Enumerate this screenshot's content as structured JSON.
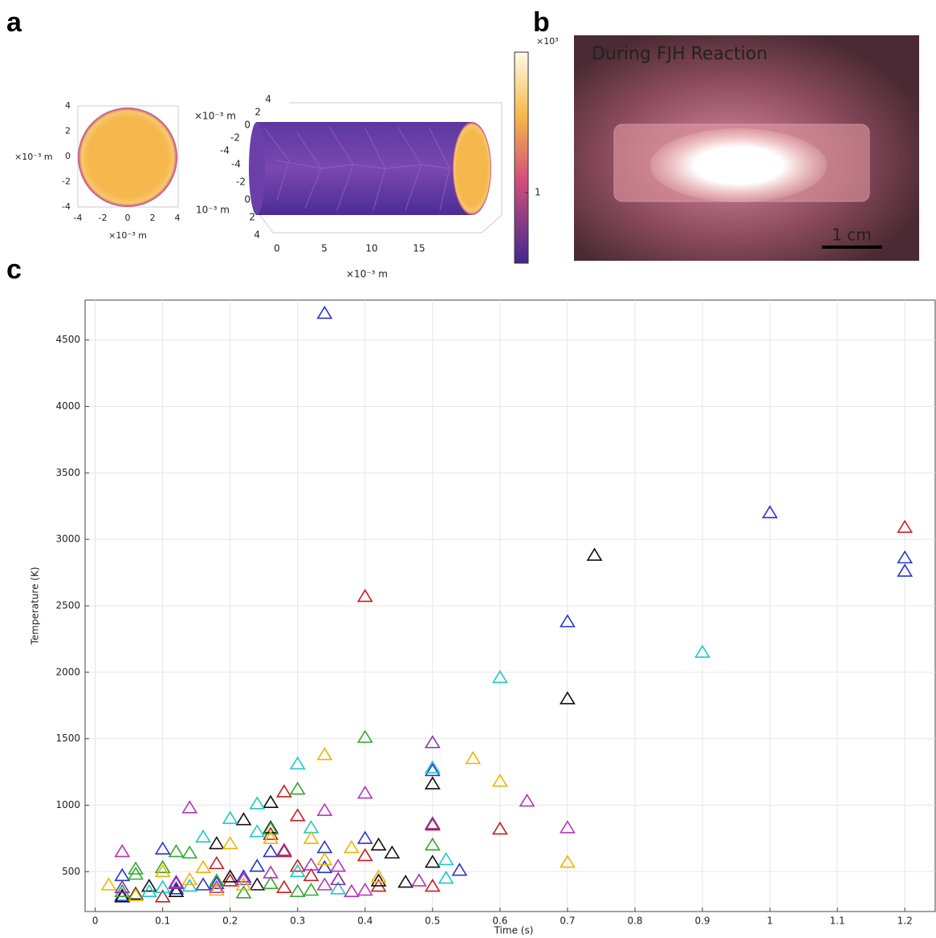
{
  "figure": {
    "panel_labels": [
      "a",
      "b",
      "c"
    ],
    "panel_a": {
      "cross_section": {
        "yticks": [
          "4",
          "2",
          "0",
          "-2",
          "-4"
        ],
        "xticks": [
          "-4",
          "-2",
          "0",
          "2",
          "4"
        ],
        "y_unit": "×10⁻³ m",
        "x_unit": "×10⁻³ m"
      },
      "cylinder": {
        "yticks": [
          "4",
          "2",
          "0",
          "-2",
          "-4"
        ],
        "zticks": [
          "-4",
          "-2",
          "0",
          "2",
          "4"
        ],
        "xticks": [
          "0",
          "5",
          "10",
          "15"
        ],
        "y_unit": "×10⁻³ m",
        "z_unit": "10⁻³ m",
        "x_unit": "×10⁻³ m"
      },
      "colorbar": {
        "scale": "×10³",
        "tick": "1"
      }
    },
    "panel_b": {
      "caption": "During FJH Reaction",
      "scale_bar": "1 cm"
    }
  },
  "chart_data": {
    "type": "scatter",
    "xlabel": "Time (s)",
    "ylabel": "Temperature (K)",
    "xlim": [
      -0.015,
      1.245
    ],
    "ylim": [
      200,
      4800
    ],
    "xticks": [
      0,
      0.1,
      0.2,
      0.3,
      0.4,
      0.5,
      0.6,
      0.7,
      0.8,
      0.9,
      1,
      1.1,
      1.2
    ],
    "yticks": [
      500,
      1000,
      1500,
      2000,
      2500,
      3000,
      3500,
      4000,
      4500
    ],
    "grid": true,
    "series": [
      {
        "color": "#2636c8",
        "x": [
          0.34,
          1.0,
          1.2,
          1.2,
          0.7,
          0.5,
          0.4,
          0.34,
          0.26,
          0.24,
          0.1,
          0.04,
          0.54,
          0.34,
          0.16,
          0.22,
          0.04,
          0.12,
          0.18
        ],
        "values": [
          4700,
          3200,
          2860,
          2760,
          2380,
          1260,
          750,
          680,
          650,
          540,
          670,
          470,
          510,
          530,
          400,
          460,
          320,
          370,
          410
        ]
      },
      {
        "color": "#c81e1e",
        "x": [
          1.2,
          0.4,
          0.6,
          0.5,
          0.28,
          0.3,
          0.26,
          0.28,
          0.3,
          0.32,
          0.4,
          0.42,
          0.5,
          0.18,
          0.1,
          0.36,
          0.2,
          0.28,
          0.06
        ],
        "values": [
          3090,
          2570,
          820,
          850,
          1100,
          920,
          780,
          650,
          540,
          470,
          620,
          390,
          390,
          560,
          310,
          440,
          430,
          380,
          330
        ]
      },
      {
        "color": "#111111",
        "x": [
          0.74,
          0.7,
          0.5,
          0.5,
          0.26,
          0.26,
          0.22,
          0.18,
          0.42,
          0.44,
          0.46,
          0.42,
          0.2,
          0.24,
          0.08,
          0.12,
          0.04,
          0.06
        ],
        "values": [
          2880,
          1800,
          1160,
          570,
          1020,
          830,
          890,
          710,
          700,
          640,
          420,
          430,
          460,
          400,
          390,
          350,
          310,
          330
        ]
      },
      {
        "color": "#1ec8c8",
        "x": [
          0.9,
          0.6,
          0.5,
          0.3,
          0.24,
          0.2,
          0.16,
          0.24,
          0.32,
          0.52,
          0.52,
          0.3,
          0.1,
          0.08,
          0.14,
          0.36
        ],
        "values": [
          2150,
          1960,
          1280,
          1310,
          1010,
          900,
          760,
          800,
          830,
          590,
          450,
          500,
          380,
          350,
          390,
          370
        ]
      },
      {
        "color": "#32a832",
        "x": [
          0.4,
          0.3,
          0.26,
          0.14,
          0.12,
          0.5,
          0.06,
          0.06,
          0.1,
          0.26,
          0.22,
          0.3,
          0.32,
          0.04,
          0.18
        ],
        "values": [
          1510,
          1120,
          820,
          640,
          650,
          700,
          520,
          480,
          530,
          410,
          340,
          350,
          360,
          350,
          430
        ]
      },
      {
        "color": "#b832b8",
        "x": [
          0.4,
          0.34,
          0.14,
          0.64,
          0.7,
          0.04,
          0.36,
          0.32,
          0.26,
          0.22,
          0.34,
          0.38,
          0.4,
          0.48,
          0.12,
          0.18
        ],
        "values": [
          1090,
          960,
          980,
          1030,
          830,
          650,
          540,
          550,
          490,
          440,
          400,
          350,
          360,
          430,
          420,
          380
        ]
      },
      {
        "color": "#f0b400",
        "x": [
          0.34,
          0.56,
          0.6,
          0.7,
          0.32,
          0.2,
          0.26,
          0.38,
          0.34,
          0.42,
          0.1,
          0.16,
          0.02,
          0.06,
          0.18,
          0.14,
          0.22
        ],
        "values": [
          1380,
          1350,
          1180,
          570,
          750,
          710,
          750,
          680,
          590,
          460,
          500,
          530,
          400,
          320,
          360,
          440,
          400
        ]
      },
      {
        "color": "#8a32a8",
        "x": [
          0.5,
          0.5,
          0.28,
          0.36,
          0.12,
          0.04
        ],
        "values": [
          1470,
          860,
          660,
          440,
          410,
          380
        ]
      }
    ]
  }
}
